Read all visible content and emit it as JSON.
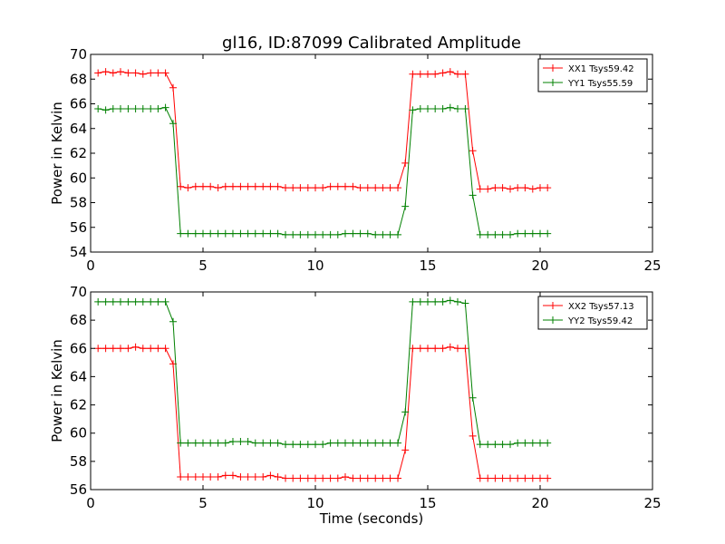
{
  "title": "gl16, ID:87099 Calibrated Amplitude",
  "chart_data": [
    {
      "type": "line",
      "ylabel": "Power in Kelvin",
      "xlabel": "",
      "xlim": [
        0,
        25
      ],
      "ylim": [
        54,
        70
      ],
      "xticks": [
        0,
        5,
        10,
        15,
        20,
        25
      ],
      "yticks": [
        54,
        56,
        58,
        60,
        62,
        64,
        66,
        68,
        70
      ],
      "legend_position": "top-right",
      "x": [
        0.33,
        0.67,
        1.0,
        1.33,
        1.67,
        2.0,
        2.33,
        2.67,
        3.0,
        3.33,
        3.67,
        4.0,
        4.33,
        4.67,
        5.0,
        5.33,
        5.67,
        6.0,
        6.33,
        6.67,
        7.0,
        7.33,
        7.67,
        8.0,
        8.33,
        8.67,
        9.0,
        9.33,
        9.67,
        10.0,
        10.33,
        10.67,
        11.0,
        11.33,
        11.67,
        12.0,
        12.33,
        12.67,
        13.0,
        13.33,
        13.67,
        14.0,
        14.33,
        14.67,
        15.0,
        15.33,
        15.67,
        16.0,
        16.33,
        16.67,
        17.0,
        17.33,
        17.67,
        18.0,
        18.33,
        18.67,
        19.0,
        19.33,
        19.67,
        20.0,
        20.33
      ],
      "series": [
        {
          "name": "XX1 Tsys59.42",
          "color": "#ff0000",
          "values": [
            68.5,
            68.6,
            68.5,
            68.6,
            68.5,
            68.5,
            68.4,
            68.5,
            68.5,
            68.5,
            67.3,
            59.3,
            59.2,
            59.3,
            59.3,
            59.3,
            59.2,
            59.3,
            59.3,
            59.3,
            59.3,
            59.3,
            59.3,
            59.3,
            59.3,
            59.2,
            59.2,
            59.2,
            59.2,
            59.2,
            59.2,
            59.3,
            59.3,
            59.3,
            59.3,
            59.2,
            59.2,
            59.2,
            59.2,
            59.2,
            59.2,
            61.2,
            68.4,
            68.4,
            68.4,
            68.4,
            68.5,
            68.6,
            68.4,
            68.4,
            62.2,
            59.1,
            59.1,
            59.2,
            59.2,
            59.1,
            59.2,
            59.2,
            59.1,
            59.2,
            59.2
          ]
        },
        {
          "name": "YY1 Tsys55.59",
          "color": "#008000",
          "values": [
            65.6,
            65.5,
            65.6,
            65.6,
            65.6,
            65.6,
            65.6,
            65.6,
            65.6,
            65.7,
            64.4,
            55.5,
            55.5,
            55.5,
            55.5,
            55.5,
            55.5,
            55.5,
            55.5,
            55.5,
            55.5,
            55.5,
            55.5,
            55.5,
            55.5,
            55.4,
            55.4,
            55.4,
            55.4,
            55.4,
            55.4,
            55.4,
            55.4,
            55.5,
            55.5,
            55.5,
            55.5,
            55.4,
            55.4,
            55.4,
            55.4,
            57.7,
            65.5,
            65.6,
            65.6,
            65.6,
            65.6,
            65.7,
            65.6,
            65.6,
            58.6,
            55.4,
            55.4,
            55.4,
            55.4,
            55.4,
            55.5,
            55.5,
            55.5,
            55.5,
            55.5
          ]
        }
      ]
    },
    {
      "type": "line",
      "ylabel": "Power in Kelvin",
      "xlabel": "Time (seconds)",
      "xlim": [
        0,
        25
      ],
      "ylim": [
        56,
        70
      ],
      "xticks": [
        0,
        5,
        10,
        15,
        20,
        25
      ],
      "yticks": [
        56,
        58,
        60,
        62,
        64,
        66,
        68,
        70
      ],
      "legend_position": "top-right",
      "x": [
        0.33,
        0.67,
        1.0,
        1.33,
        1.67,
        2.0,
        2.33,
        2.67,
        3.0,
        3.33,
        3.67,
        4.0,
        4.33,
        4.67,
        5.0,
        5.33,
        5.67,
        6.0,
        6.33,
        6.67,
        7.0,
        7.33,
        7.67,
        8.0,
        8.33,
        8.67,
        9.0,
        9.33,
        9.67,
        10.0,
        10.33,
        10.67,
        11.0,
        11.33,
        11.67,
        12.0,
        12.33,
        12.67,
        13.0,
        13.33,
        13.67,
        14.0,
        14.33,
        14.67,
        15.0,
        15.33,
        15.67,
        16.0,
        16.33,
        16.67,
        17.0,
        17.33,
        17.67,
        18.0,
        18.33,
        18.67,
        19.0,
        19.33,
        19.67,
        20.0,
        20.33
      ],
      "series": [
        {
          "name": "XX2 Tsys57.13",
          "color": "#ff0000",
          "values": [
            66.0,
            66.0,
            66.0,
            66.0,
            66.0,
            66.1,
            66.0,
            66.0,
            66.0,
            66.0,
            64.9,
            56.9,
            56.9,
            56.9,
            56.9,
            56.9,
            56.9,
            57.0,
            57.0,
            56.9,
            56.9,
            56.9,
            56.9,
            57.0,
            56.9,
            56.8,
            56.8,
            56.8,
            56.8,
            56.8,
            56.8,
            56.8,
            56.8,
            56.9,
            56.8,
            56.8,
            56.8,
            56.8,
            56.8,
            56.8,
            56.8,
            58.8,
            66.0,
            66.0,
            66.0,
            66.0,
            66.0,
            66.1,
            66.0,
            66.0,
            59.8,
            56.8,
            56.8,
            56.8,
            56.8,
            56.8,
            56.8,
            56.8,
            56.8,
            56.8,
            56.8
          ]
        },
        {
          "name": "YY2 Tsys59.42",
          "color": "#008000",
          "values": [
            69.3,
            69.3,
            69.3,
            69.3,
            69.3,
            69.3,
            69.3,
            69.3,
            69.3,
            69.3,
            67.9,
            59.3,
            59.3,
            59.3,
            59.3,
            59.3,
            59.3,
            59.3,
            59.4,
            59.4,
            59.4,
            59.3,
            59.3,
            59.3,
            59.3,
            59.2,
            59.2,
            59.2,
            59.2,
            59.2,
            59.2,
            59.3,
            59.3,
            59.3,
            59.3,
            59.3,
            59.3,
            59.3,
            59.3,
            59.3,
            59.3,
            61.5,
            69.3,
            69.3,
            69.3,
            69.3,
            69.3,
            69.4,
            69.3,
            69.2,
            62.5,
            59.2,
            59.2,
            59.2,
            59.2,
            59.2,
            59.3,
            59.3,
            59.3,
            59.3,
            59.3
          ]
        }
      ]
    }
  ]
}
